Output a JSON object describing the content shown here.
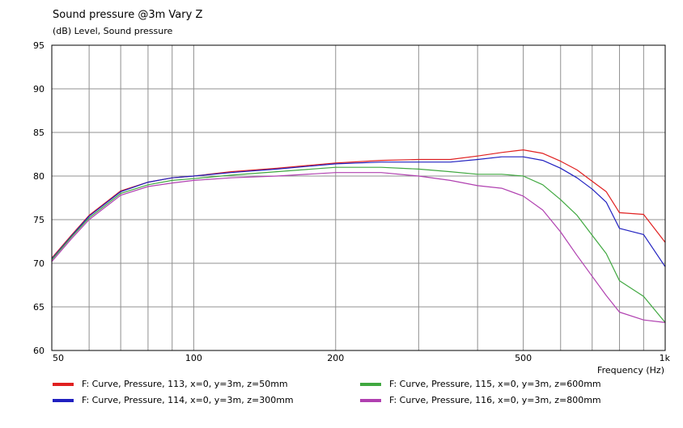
{
  "chart_data": {
    "type": "line",
    "title": "Sound pressure @3m Vary Z",
    "ylabel": "(dB)  Level, Sound pressure",
    "xlabel": "Frequency  (Hz)",
    "x_scale": "log",
    "xlim": [
      50,
      1000
    ],
    "ylim": [
      60,
      95
    ],
    "x_ticks": [
      {
        "value": 50,
        "label": "50"
      },
      {
        "value": 100,
        "label": "100"
      },
      {
        "value": 200,
        "label": "200"
      },
      {
        "value": 500,
        "label": "500"
      },
      {
        "value": 1000,
        "label": "1k"
      }
    ],
    "x_gridlines": [
      50,
      60,
      70,
      80,
      90,
      100,
      200,
      300,
      400,
      500,
      600,
      700,
      800,
      900,
      1000
    ],
    "y_ticks": [
      60,
      65,
      70,
      75,
      80,
      85,
      90,
      95
    ],
    "grid": true,
    "legend_position": "bottom",
    "x": [
      50,
      55,
      60,
      70,
      80,
      90,
      100,
      120,
      150,
      200,
      250,
      300,
      350,
      400,
      450,
      500,
      550,
      600,
      650,
      700,
      750,
      800,
      900,
      1000
    ],
    "series": [
      {
        "name": "F: Curve, Pressure, 113, x=0, y=3m, z=50mm",
        "color": "#e02020",
        "values": [
          70.6,
          73.2,
          75.5,
          78.3,
          79.3,
          79.8,
          80.0,
          80.5,
          80.9,
          81.5,
          81.8,
          81.9,
          81.9,
          82.3,
          82.7,
          83.0,
          82.6,
          81.7,
          80.7,
          79.4,
          78.2,
          75.8,
          75.6,
          72.4
        ]
      },
      {
        "name": "F: Curve, Pressure, 114, x=0, y=3m, z=300mm",
        "color": "#2020c0",
        "values": [
          70.5,
          73.1,
          75.4,
          78.2,
          79.3,
          79.8,
          80.0,
          80.4,
          80.8,
          81.4,
          81.6,
          81.6,
          81.6,
          81.9,
          82.2,
          82.2,
          81.8,
          80.9,
          79.8,
          78.5,
          77.0,
          74.0,
          73.3,
          69.6
        ]
      },
      {
        "name": "F: Curve, Pressure, 115, x=0, y=3m, z=600mm",
        "color": "#40a840",
        "values": [
          70.4,
          73.0,
          75.2,
          78.0,
          79.0,
          79.5,
          79.7,
          80.1,
          80.5,
          81.0,
          81.0,
          80.8,
          80.5,
          80.2,
          80.2,
          80.0,
          79.0,
          77.3,
          75.5,
          73.2,
          71.1,
          68.0,
          66.2,
          63.2
        ]
      },
      {
        "name": "F: Curve, Pressure, 116, x=0, y=3m, z=800mm",
        "color": "#b040b0",
        "values": [
          70.2,
          72.8,
          75.0,
          77.8,
          78.8,
          79.2,
          79.5,
          79.8,
          80.0,
          80.4,
          80.4,
          80.0,
          79.5,
          78.9,
          78.6,
          77.7,
          76.1,
          73.6,
          70.9,
          68.5,
          66.3,
          64.4,
          63.5,
          63.2
        ]
      }
    ]
  }
}
